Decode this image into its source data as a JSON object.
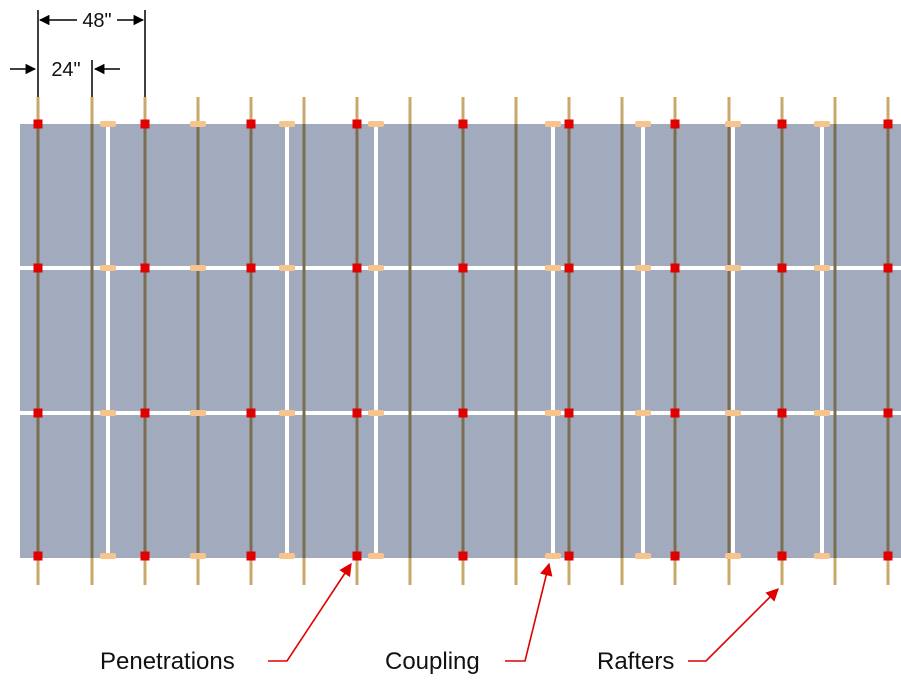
{
  "dimensions": {
    "wide_label": "48\"",
    "narrow_label": "24\""
  },
  "callouts": {
    "penetrations": "Penetrations",
    "coupling": "Coupling",
    "rafters": "Rafters"
  },
  "colors": {
    "panel": "#a2aabd",
    "rafter": "#c8a96a",
    "rafter_shadow": "#7a6e4e",
    "penetration": "#e00000",
    "coupling": "#f6c48c",
    "rail_gap": "#ffffff",
    "callout_arrow": "#e00000",
    "dimension_line": "#000000"
  },
  "layout_counts": {
    "rafters": 17,
    "panel_rows": 3
  }
}
